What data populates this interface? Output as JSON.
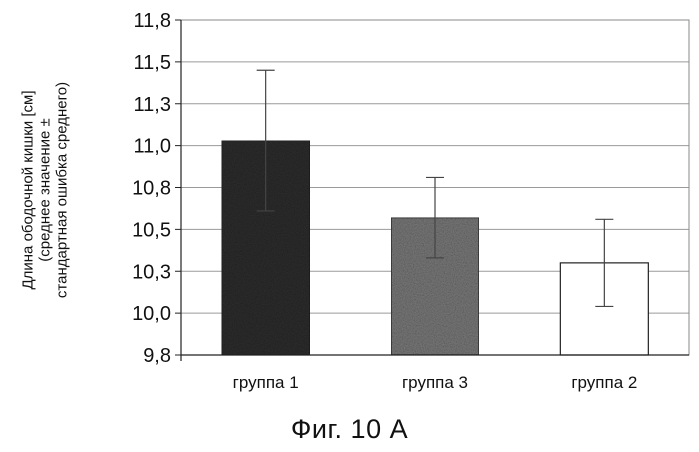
{
  "caption": "Фиг. 10 А",
  "chart_data": {
    "type": "bar",
    "ylabel": [
      "Длина ободочной кишки [см]",
      "(среднее значение ±",
      "стандартная ошибка среднего)"
    ],
    "categories": [
      "группа 1",
      "группа 3",
      "группа 2"
    ],
    "values": [
      11.08,
      10.62,
      10.35
    ],
    "errors": [
      0.42,
      0.24,
      0.26
    ],
    "ylim": [
      9.8,
      11.8
    ],
    "ytick_values": [
      9.8,
      10.05,
      10.3,
      10.55,
      10.8,
      11.05,
      11.3,
      11.55,
      11.8
    ],
    "ytick_labels": [
      "9,8",
      "10,0",
      "10,3",
      "10,5",
      "10,8",
      "11,0",
      "11,3",
      "11,5",
      "11,8"
    ],
    "grid": true,
    "legend": "none",
    "bar_fills": [
      "#2e2e2e",
      "#7a7a7a",
      "#ffffff"
    ]
  }
}
